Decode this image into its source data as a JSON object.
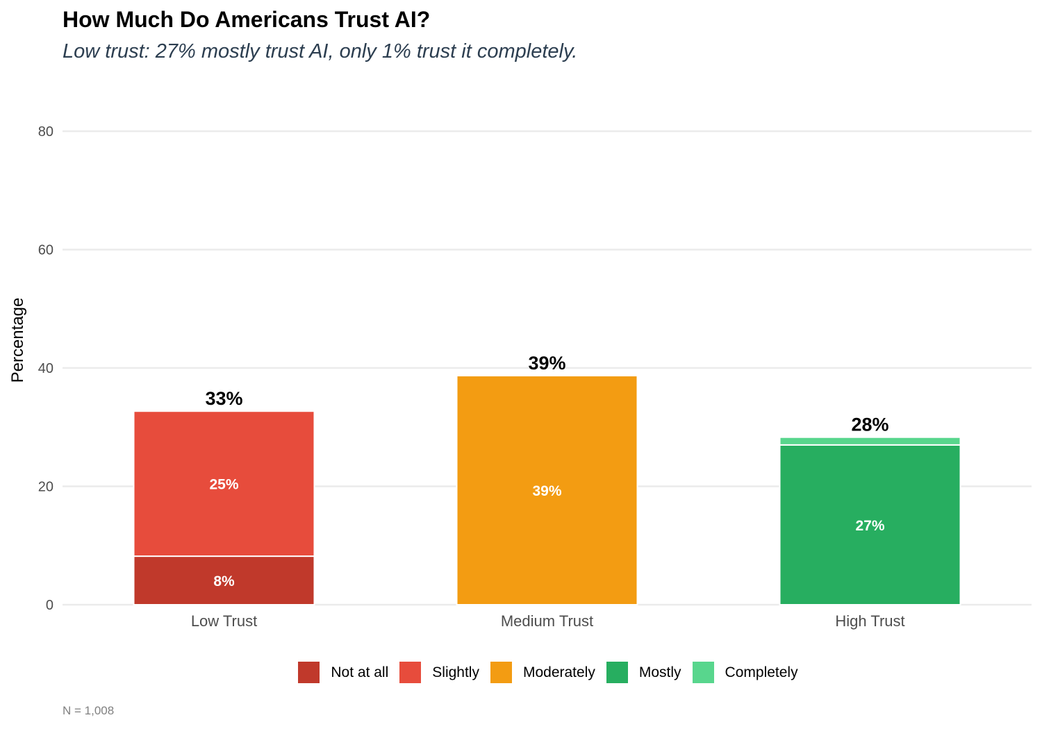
{
  "chart_data": {
    "type": "stacked-bar",
    "title": "How Much Do Americans Trust AI?",
    "subtitle": "Low trust: 27% mostly trust AI, only 1% trust it completely.",
    "caption": "N = 1,008",
    "xlabel": "",
    "ylabel": "Percentage",
    "ylim": [
      0,
      80
    ],
    "yticks": [
      0,
      20,
      40,
      60,
      80
    ],
    "grid": true,
    "legend_position": "bottom",
    "categories": [
      "Low Trust",
      "Medium Trust",
      "High Trust"
    ],
    "series": [
      {
        "name": "Not at all",
        "color": "#c0392b",
        "values": [
          8.2,
          0,
          0
        ],
        "labels": [
          "8%",
          "",
          ""
        ]
      },
      {
        "name": "Slightly",
        "color": "#e74c3c",
        "values": [
          24.5,
          0,
          0
        ],
        "labels": [
          "25%",
          "",
          ""
        ]
      },
      {
        "name": "Moderately",
        "color": "#f39c12",
        "values": [
          0,
          38.7,
          0
        ],
        "labels": [
          "",
          "39%",
          ""
        ]
      },
      {
        "name": "Mostly",
        "color": "#27ae60",
        "values": [
          0,
          0,
          27.0
        ],
        "labels": [
          "",
          "",
          "27%"
        ]
      },
      {
        "name": "Completely",
        "color": "#58d68d",
        "values": [
          0,
          0,
          1.3
        ],
        "labels": [
          "",
          "",
          ""
        ]
      }
    ],
    "totals": [
      "33%",
      "39%",
      "28%"
    ]
  }
}
